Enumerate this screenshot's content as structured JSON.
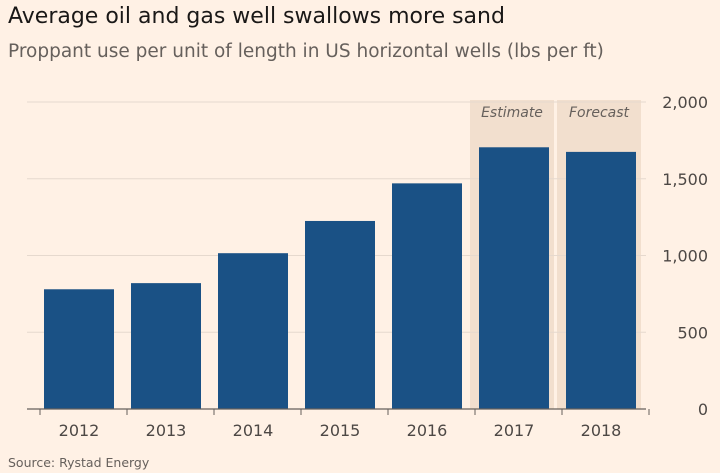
{
  "title": "Average oil and gas well swallows more sand",
  "subtitle": "Proppant use per unit of length in US horizontal wells (lbs per ft)",
  "source": "Source: Rystad Energy",
  "colors": {
    "background": "#fff1e5",
    "bar": "#1a5185",
    "grid": "#e6d9ce",
    "band": "#f2dfce",
    "axis": "#66605c"
  },
  "chart_data": {
    "type": "bar",
    "categories": [
      "2012",
      "2013",
      "2014",
      "2015",
      "2016",
      "2017",
      "2018"
    ],
    "values": [
      780,
      820,
      1015,
      1225,
      1470,
      1705,
      1675
    ],
    "ylim": [
      0,
      2000
    ],
    "yticks": [
      0,
      500,
      1000,
      1500,
      2000
    ],
    "ytick_labels": [
      "0",
      "500",
      "1,000",
      "1,500",
      "2,000"
    ],
    "y_axis_side": "right",
    "grid": true,
    "highlights": [
      {
        "category": "2017",
        "label": "Estimate"
      },
      {
        "category": "2018",
        "label": "Forecast"
      }
    ]
  }
}
